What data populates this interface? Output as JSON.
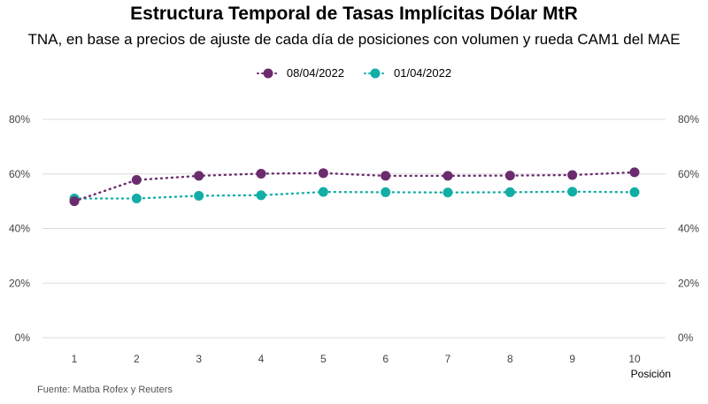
{
  "title": "Estructura Temporal de Tasas Implícitas Dólar MtR",
  "subtitle": "TNA, en base a precios de ajuste de cada día de posiciones con volumen y rueda CAM1 del MAE",
  "source": "Fuente: Matba Rofex y Reuters",
  "chart_data": {
    "type": "line",
    "title": "Estructura Temporal de Tasas Implícitas Dólar MtR",
    "subtitle": "TNA, en base a precios de ajuste de cada día de posiciones con volumen y rueda CAM1 del MAE",
    "xlabel": "Posición",
    "ylabel": "",
    "x": [
      1,
      2,
      3,
      4,
      5,
      6,
      7,
      8,
      9,
      10
    ],
    "ylim": [
      0,
      80
    ],
    "yticks": [
      "0%",
      "20%",
      "40%",
      "60%",
      "80%"
    ],
    "ytick_values": [
      0,
      20,
      40,
      60,
      80
    ],
    "grid": true,
    "legend_position": "top",
    "line_style": "dotted with markers",
    "series": [
      {
        "name": "08/04/2022",
        "color": "#6b2c6e",
        "values": [
          50.0,
          57.8,
          59.3,
          60.1,
          60.3,
          59.3,
          59.3,
          59.4,
          59.6,
          60.6
        ]
      },
      {
        "name": "01/04/2022",
        "color": "#12aea6",
        "values": [
          51.0,
          51.0,
          52.0,
          52.2,
          53.4,
          53.3,
          53.2,
          53.3,
          53.5,
          53.3
        ]
      }
    ]
  }
}
